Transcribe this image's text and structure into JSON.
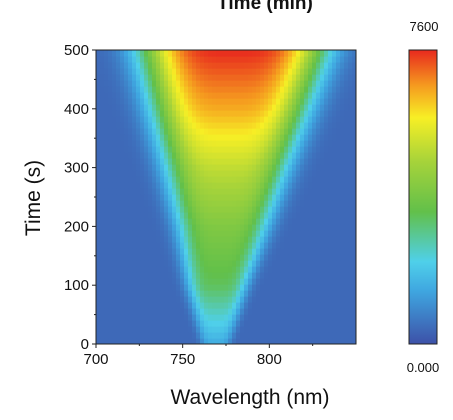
{
  "chart_data": {
    "type": "heatmap",
    "title": "Time (min)",
    "xlabel": "Wavelength (nm)",
    "ylabel": "Time (s)",
    "xlim": [
      700,
      850
    ],
    "ylim": [
      0,
      500
    ],
    "x_ticks": [
      700,
      750,
      800
    ],
    "y_ticks": [
      0,
      100,
      200,
      300,
      400,
      500
    ],
    "y_tick_labels": [
      "0",
      "100",
      "200",
      "300",
      "400",
      "500"
    ],
    "colorbar": {
      "min": 0.0,
      "max": 7600,
      "min_label": "0.000",
      "max_label": "7600"
    },
    "colors": {
      "scale": [
        "#3d51a8",
        "#3fa6e0",
        "#4fd0ea",
        "#62c04a",
        "#a6d33a",
        "#f7ef25",
        "#f59a1f",
        "#e8291e"
      ]
    },
    "band": {
      "description_points": [
        {
          "time": 0,
          "center_nm": 769,
          "intensity": 0.15
        },
        {
          "time": 100,
          "center_nm": 770,
          "intensity": 0.4
        },
        {
          "time": 200,
          "center_nm": 773,
          "intensity": 0.5
        },
        {
          "time": 300,
          "center_nm": 775,
          "intensity": 0.65
        },
        {
          "time": 400,
          "center_nm": 777,
          "intensity": 0.85
        },
        {
          "time": 500,
          "center_nm": 779,
          "intensity": 1.0
        }
      ]
    }
  }
}
